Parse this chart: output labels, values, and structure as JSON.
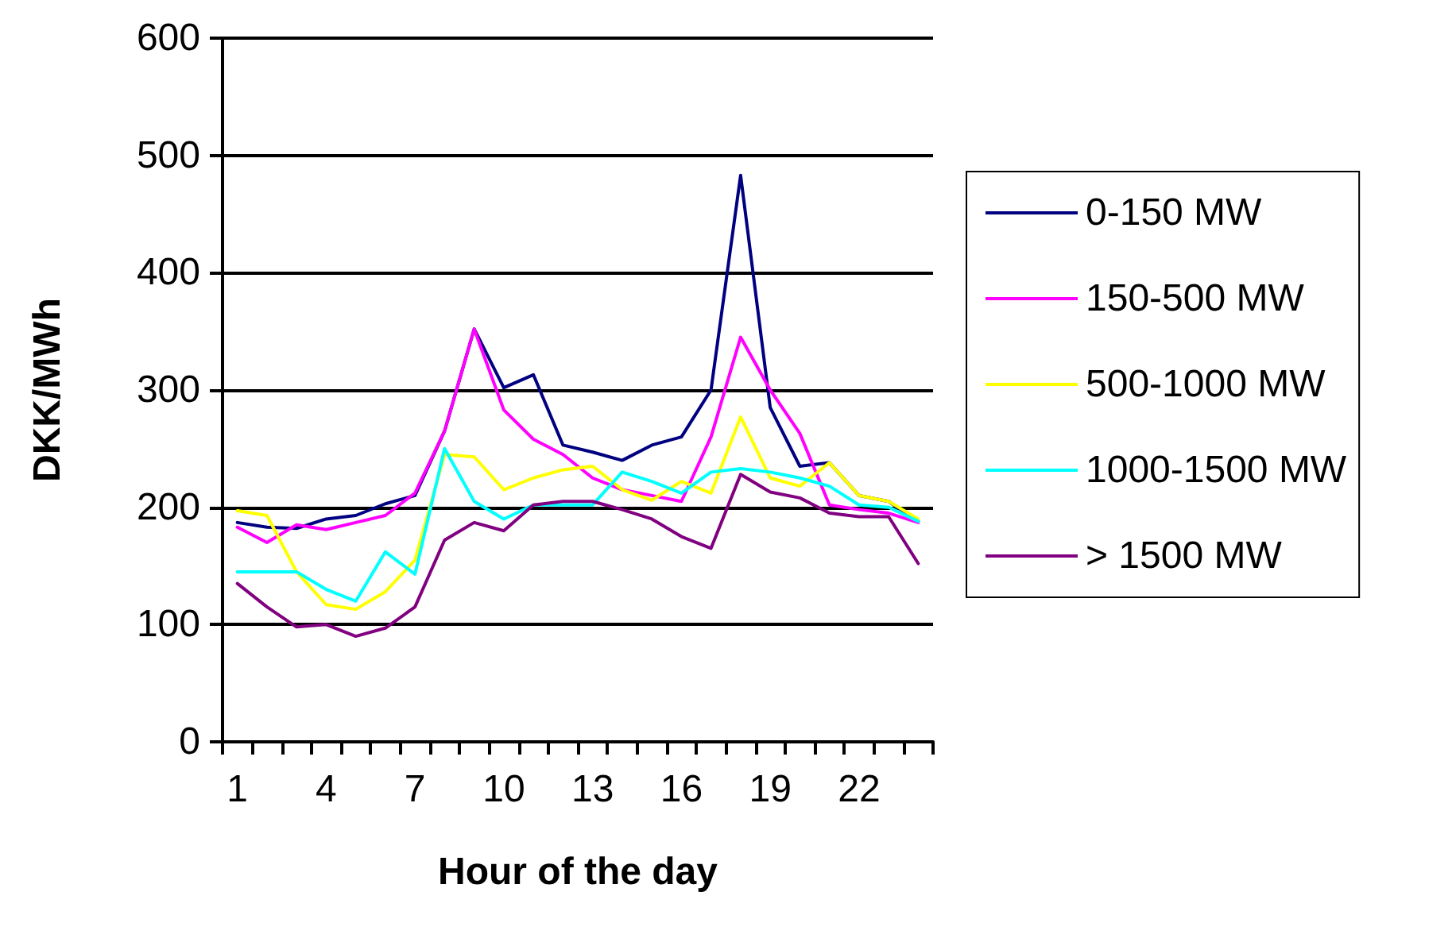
{
  "chart_data": {
    "type": "line",
    "xlabel": "Hour of the day",
    "ylabel": "DKK/MWh",
    "categories": [
      "1",
      null,
      null,
      "4",
      null,
      null,
      "7",
      null,
      null,
      "10",
      null,
      null,
      "13",
      null,
      null,
      "16",
      null,
      null,
      "19",
      null,
      null,
      "22",
      null,
      null
    ],
    "ylim": [
      0,
      600
    ],
    "yticks": [
      0,
      100,
      200,
      300,
      400,
      500,
      600
    ],
    "grid": "y",
    "legend": "right",
    "marker": "none",
    "line_style": "solid",
    "series": [
      {
        "name": "0-150 MW",
        "color": "#000080",
        "values": [
          187,
          183,
          182,
          190,
          193,
          203,
          210,
          265,
          352,
          302,
          313,
          253,
          247,
          240,
          253,
          260,
          300,
          483,
          285,
          235,
          238,
          210,
          205,
          188
        ]
      },
      {
        "name": "150-500 MW",
        "color": "#ff00ff",
        "values": [
          183,
          170,
          185,
          181,
          187,
          193,
          212,
          265,
          352,
          283,
          258,
          245,
          225,
          215,
          210,
          205,
          260,
          345,
          300,
          263,
          202,
          198,
          195,
          187
        ]
      },
      {
        "name": "500-1000 MW",
        "color": "#ffff00",
        "values": [
          197,
          193,
          145,
          117,
          113,
          128,
          155,
          245,
          243,
          215,
          225,
          232,
          235,
          215,
          206,
          222,
          212,
          277,
          225,
          218,
          238,
          210,
          205,
          190
        ]
      },
      {
        "name": "1000-1500 MW",
        "color": "#00ffff",
        "values": [
          145,
          145,
          145,
          130,
          120,
          162,
          143,
          250,
          205,
          190,
          202,
          202,
          202,
          230,
          222,
          212,
          230,
          233,
          230,
          225,
          218,
          202,
          200,
          188
        ]
      },
      {
        "name": "> 1500 MW",
        "color": "#800080",
        "values": [
          135,
          115,
          98,
          100,
          90,
          97,
          115,
          172,
          187,
          180,
          202,
          205,
          205,
          198,
          190,
          175,
          165,
          228,
          213,
          208,
          195,
          192,
          192,
          152
        ]
      }
    ]
  }
}
